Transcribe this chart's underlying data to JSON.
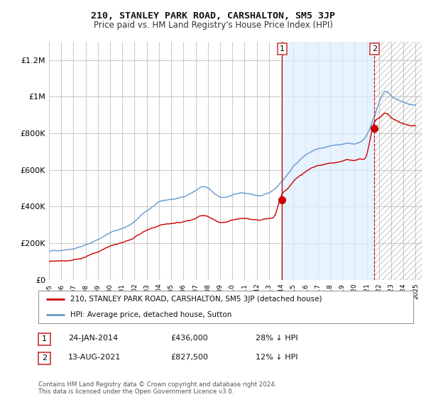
{
  "title": "210, STANLEY PARK ROAD, CARSHALTON, SM5 3JP",
  "subtitle": "Price paid vs. HM Land Registry's House Price Index (HPI)",
  "legend_label_red": "210, STANLEY PARK ROAD, CARSHALTON, SM5 3JP (detached house)",
  "legend_label_blue": "HPI: Average price, detached house, Sutton",
  "annotation1_date": "24-JAN-2014",
  "annotation1_price": "£436,000",
  "annotation1_hpi": "28% ↓ HPI",
  "annotation2_date": "13-AUG-2021",
  "annotation2_price": "£827,500",
  "annotation2_hpi": "12% ↓ HPI",
  "footer": "Contains HM Land Registry data © Crown copyright and database right 2024.\nThis data is licensed under the Open Government Licence v3.0.",
  "ylim": [
    0,
    1300000
  ],
  "yticks": [
    0,
    200000,
    400000,
    600000,
    800000,
    1000000,
    1200000
  ],
  "ytick_labels": [
    "£0",
    "£200K",
    "£400K",
    "£600K",
    "£800K",
    "£1M",
    "£1.2M"
  ],
  "background_color": "#ffffff",
  "plot_bg_color": "#ffffff",
  "grid_color": "#cccccc",
  "shade_color": "#ddeeff",
  "red_color": "#cc0000",
  "blue_color": "#6699cc",
  "point1_x": 2014.07,
  "point1_y": 436000,
  "point2_x": 2021.62,
  "point2_y": 827500,
  "xmin": 1995,
  "xmax": 2025.5
}
